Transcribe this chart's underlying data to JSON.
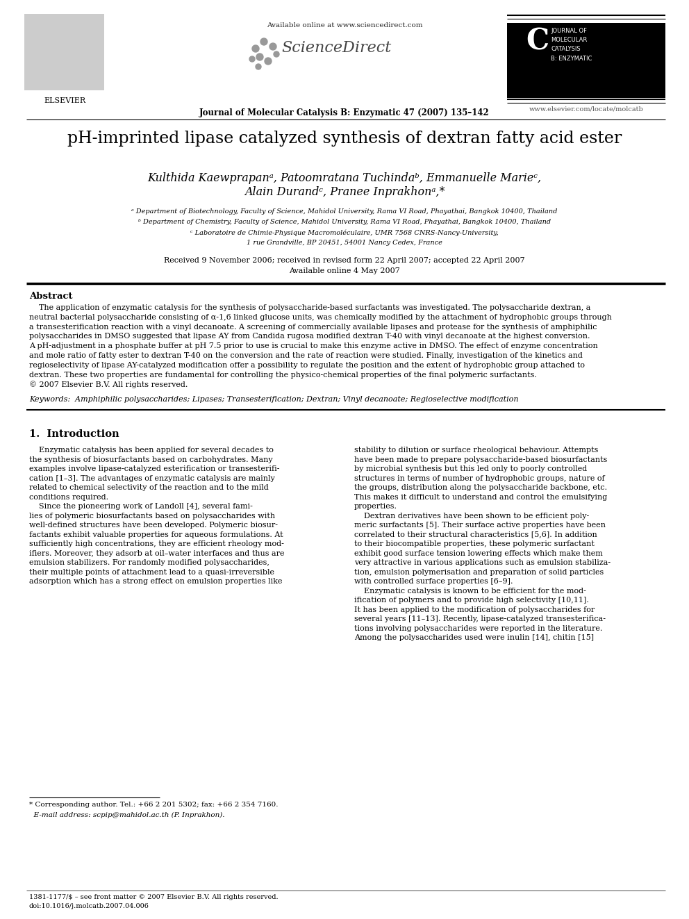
{
  "background_color": "#ffffff",
  "title": "pH-imprinted lipase catalyzed synthesis of dextran fatty acid ester",
  "authors_line1": "Kulthida Kaewprapanᵃ, Patoomratana Tuchindaᵇ, Emmanuelle Marieᶜ,",
  "authors_line2": "Alain Durandᶜ, Pranee Inprakhonᵃ,*",
  "affil_a": "ᵃ Department of Biotechnology, Faculty of Science, Mahidol University, Rama VI Road, Phayathai, Bangkok 10400, Thailand",
  "affil_b": "ᵇ Department of Chemistry, Faculty of Science, Mahidol University, Rama VI Road, Phayathai, Bangkok 10400, Thailand",
  "affil_c": "ᶜ Laboratoire de Chimie-Physique Macromoléculaire, UMR 7568 CNRS-Nancy-University,",
  "affil_c2": "1 rue Grandville, BP 20451, 54001 Nancy Cedex, France",
  "received": "Received 9 November 2006; received in revised form 22 April 2007; accepted 22 April 2007",
  "available": "Available online 4 May 2007",
  "journal_header": "Journal of Molecular Catalysis B: Enzymatic 47 (2007) 135–142",
  "available_online": "Available online at www.sciencedirect.com",
  "website": "www.elsevier.com/locate/molcatb",
  "abstract_title": "Abstract",
  "keywords_text": "Keywords:  Amphiphilic polysaccharides; Lipases; Transesterification; Dextran; Vinyl decanoate; Regioselective modification",
  "section1_title": "1.  Introduction",
  "footnote_star": "* Corresponding author. Tel.: +66 2 201 5302; fax: +66 2 354 7160.",
  "footnote_email": "  E-mail address: scpip@mahidol.ac.th (P. Inprakhon).",
  "footer_line1": "1381-1177/$ – see front matter © 2007 Elsevier B.V. All rights reserved.",
  "footer_line2": "doi:10.1016/j.molcatb.2007.04.006",
  "abstract_lines": [
    "    The application of enzymatic catalysis for the synthesis of polysaccharide-based surfactants was investigated. The polysaccharide dextran, a",
    "neutral bacterial polysaccharide consisting of α-1,6 linked glucose units, was chemically modified by the attachment of hydrophobic groups through",
    "a transesterification reaction with a vinyl decanoate. A screening of commercially available lipases and protease for the synthesis of amphiphilic",
    "polysaccharides in DMSO suggested that lipase AY from Candida rugosa modified dextran T-40 with vinyl decanoate at the highest conversion.",
    "A pH-adjustment in a phosphate buffer at pH 7.5 prior to use is crucial to make this enzyme active in DMSO. The effect of enzyme concentration",
    "and mole ratio of fatty ester to dextran T-40 on the conversion and the rate of reaction were studied. Finally, investigation of the kinetics and",
    "regioselectivity of lipase AY-catalyzed modification offer a possibility to regulate the position and the extent of hydrophobic group attached to",
    "dextran. These two properties are fundamental for controlling the physico-chemical properties of the final polymeric surfactants.",
    "© 2007 Elsevier B.V. All rights reserved."
  ],
  "left_col_lines": [
    "    Enzymatic catalysis has been applied for several decades to",
    "the synthesis of biosurfactants based on carbohydrates. Many",
    "examples involve lipase-catalyzed esterification or transesterifi-",
    "cation [1–3]. The advantages of enzymatic catalysis are mainly",
    "related to chemical selectivity of the reaction and to the mild",
    "conditions required.",
    "    Since the pioneering work of Landoll [4], several fami-",
    "lies of polymeric biosurfactants based on polysaccharides with",
    "well-defined structures have been developed. Polymeric biosur-",
    "factants exhibit valuable properties for aqueous formulations. At",
    "sufficiently high concentrations, they are efficient rheology mod-",
    "ifiers. Moreover, they adsorb at oil–water interfaces and thus are",
    "emulsion stabilizers. For randomly modified polysaccharides,",
    "their multiple points of attachment lead to a quasi-irreversible",
    "adsorption which has a strong effect on emulsion properties like"
  ],
  "right_col_lines": [
    "stability to dilution or surface rheological behaviour. Attempts",
    "have been made to prepare polysaccharide-based biosurfactants",
    "by microbial synthesis but this led only to poorly controlled",
    "structures in terms of number of hydrophobic groups, nature of",
    "the groups, distribution along the polysaccharide backbone, etc.",
    "This makes it difficult to understand and control the emulsifying",
    "properties.",
    "    Dextran derivatives have been shown to be efficient poly-",
    "meric surfactants [5]. Their surface active properties have been",
    "correlated to their structural characteristics [5,6]. In addition",
    "to their biocompatible properties, these polymeric surfactant",
    "exhibit good surface tension lowering effects which make them",
    "very attractive in various applications such as emulsion stabiliza-",
    "tion, emulsion polymerisation and preparation of solid particles",
    "with controlled surface properties [6–9].",
    "    Enzymatic catalysis is known to be efficient for the mod-",
    "ification of polymers and to provide high selectivity [10,11].",
    "It has been applied to the modification of polysaccharides for",
    "several years [11–13]. Recently, lipase-catalyzed transesterifica-",
    "tions involving polysaccharides were reported in the literature.",
    "Among the polysaccharides used were inulin [14], chitin [15]"
  ]
}
